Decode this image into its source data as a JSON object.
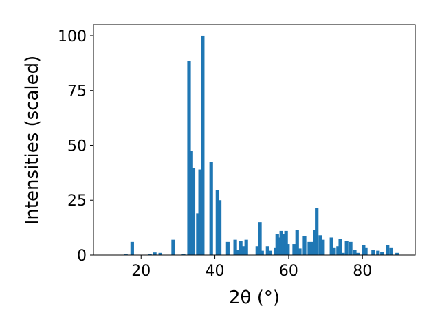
{
  "chart_data": {
    "type": "bar",
    "xlabel": "2θ (°)",
    "ylabel": "Intensities (scaled)",
    "color": "#1f77b4",
    "x": [
      15.9,
      17.6,
      22.4,
      23.7,
      25.2,
      28.7,
      31.5,
      33.0,
      33.6,
      34.2,
      35.4,
      36.0,
      36.7,
      39.0,
      40.7,
      41.3,
      43.5,
      45.5,
      46.3,
      47.0,
      47.6,
      48.5,
      51.5,
      52.2,
      52.8,
      54.3,
      55.0,
      56.5,
      56.9,
      57.4,
      58.0,
      58.5,
      59.3,
      59.8,
      61.5,
      62.3,
      63.0,
      64.3,
      65.6,
      66.5,
      67.1,
      67.6,
      68.6,
      69.3,
      71.6,
      72.3,
      73.4,
      74.0,
      74.7,
      75.7,
      76.8,
      77.9,
      78.8,
      80.3,
      80.9,
      82.9,
      84.2,
      85.3,
      86.8,
      87.8,
      89.4
    ],
    "values": [
      0.3,
      6,
      0.5,
      1.2,
      1,
      7,
      0.5,
      88.5,
      47.5,
      39.5,
      19,
      39,
      100,
      42.5,
      29.5,
      25,
      6,
      7,
      2.5,
      6.5,
      4,
      7,
      4,
      15,
      2,
      4,
      2,
      3.5,
      9.5,
      8,
      11,
      9.5,
      11,
      5,
      5,
      11.5,
      3,
      8.5,
      6,
      6,
      11.5,
      21.5,
      9,
      7,
      8,
      3.5,
      4,
      7.5,
      1,
      6.5,
      6,
      2.5,
      1,
      4.5,
      3.5,
      2.5,
      2,
      1.5,
      4.5,
      3.5,
      1
    ],
    "xlim": [
      7.1,
      94.3
    ],
    "ylim": [
      0,
      105
    ],
    "xticks": [
      20,
      40,
      60,
      80
    ],
    "yticks": [
      0,
      25,
      50,
      75,
      100
    ]
  }
}
